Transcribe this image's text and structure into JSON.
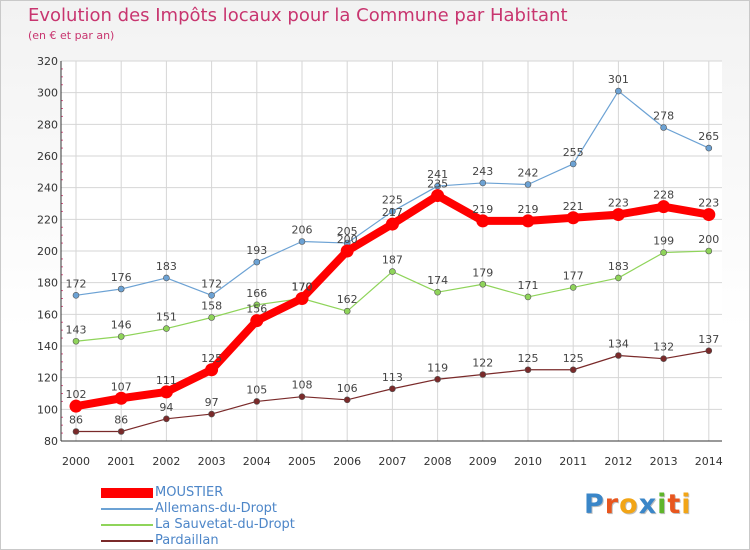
{
  "header": {
    "title": "Evolution des Impôts locaux pour la Commune par Habitant",
    "subtitle": "(en € et par an)"
  },
  "logo": {
    "text": "Proxiti",
    "colors": [
      "#3a86c8",
      "#e8561e",
      "#f2a516",
      "#3a86c8",
      "#5fb52b",
      "#e8561e",
      "#f2a516"
    ]
  },
  "chart_data": {
    "type": "line",
    "x": [
      "2000",
      "2001",
      "2002",
      "2003",
      "2004",
      "2005",
      "2006",
      "2007",
      "2008",
      "2009",
      "2010",
      "2011",
      "2012",
      "2013",
      "2014"
    ],
    "ylim": [
      80,
      320
    ],
    "yticks": [
      80,
      100,
      120,
      140,
      160,
      180,
      200,
      220,
      240,
      260,
      280,
      300,
      320
    ],
    "grid": true,
    "legend_position": "bottom-left",
    "series": [
      {
        "name": "MOUSTIER",
        "color": "#ff0000",
        "values": [
          102,
          107,
          111,
          125,
          156,
          170,
          200,
          217,
          235,
          219,
          219,
          221,
          223,
          228,
          223
        ],
        "labels": [
          "102",
          "107",
          "111",
          "125",
          "156",
          "170",
          "200",
          "217",
          "235",
          "219",
          "219",
          "221",
          "223",
          "228",
          "223"
        ]
      },
      {
        "name": "Allemans-du-Dropt",
        "color": "#6ca2d4",
        "values": [
          172,
          176,
          183,
          172,
          193,
          206,
          205,
          225,
          241,
          243,
          242,
          255,
          301,
          278,
          265
        ],
        "labels": [
          "172",
          "176",
          "183",
          "172",
          "193",
          "206",
          "205",
          "225",
          "241",
          "243",
          "242",
          "255",
          "301",
          "278",
          "265"
        ]
      },
      {
        "name": "La Sauvetat-du-Dropt",
        "color": "#8fd45a",
        "values": [
          143,
          146,
          151,
          158,
          166,
          170,
          162,
          187,
          174,
          179,
          171,
          177,
          183,
          199,
          200
        ],
        "labels": [
          "143",
          "146",
          "151",
          "158",
          "166",
          "170",
          "162",
          "187",
          "174",
          "179",
          "171",
          "177",
          "183",
          "199",
          "200"
        ]
      },
      {
        "name": "Pardaillan",
        "color": "#7a2a2a",
        "values": [
          86,
          86,
          94,
          97,
          105,
          108,
          106,
          113,
          119,
          122,
          125,
          125,
          134,
          132,
          137
        ],
        "labels": [
          "86",
          "86",
          "94",
          "97",
          "105",
          "108",
          "106",
          "113",
          "119",
          "122",
          "125",
          "125",
          "134",
          "132",
          "137"
        ]
      }
    ]
  }
}
